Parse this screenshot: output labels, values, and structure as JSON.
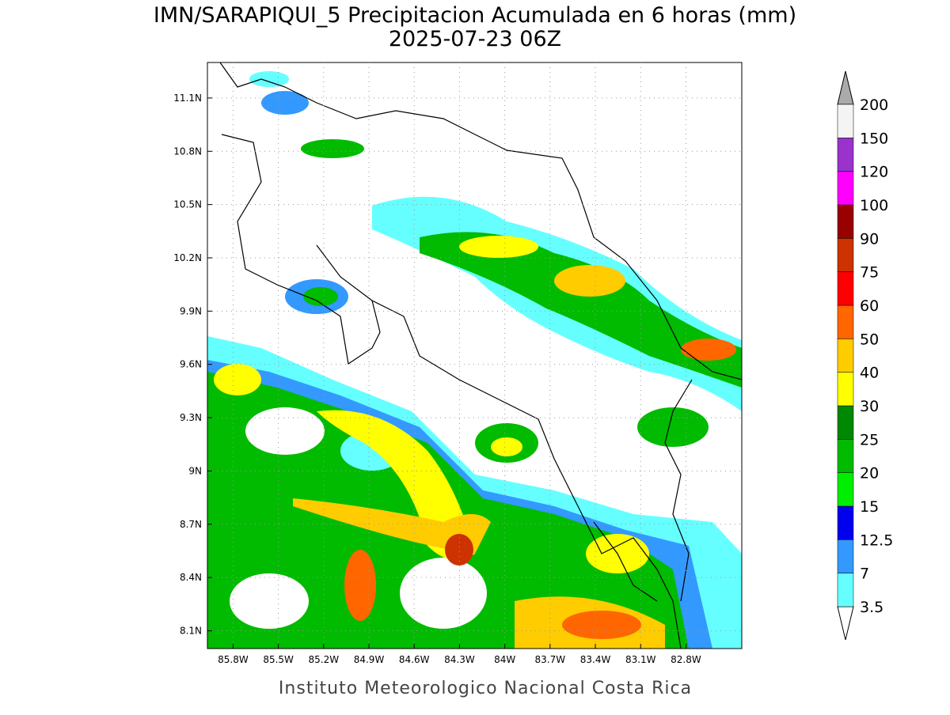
{
  "title": "IMN/SARAPIQUI_5 Precipitacion Acumulada en 6 horas (mm)",
  "subtitle": "2025-07-23 06Z",
  "map": {
    "lonlim": [
      -85.97,
      -82.43
    ],
    "latlim": [
      8.0,
      11.3
    ],
    "lon_ticks": [
      {
        "value": -85.8,
        "label": "85.8W"
      },
      {
        "value": -85.5,
        "label": "85.5W"
      },
      {
        "value": -85.2,
        "label": "85.2W"
      },
      {
        "value": -84.9,
        "label": "84.9W"
      },
      {
        "value": -84.6,
        "label": "84.6W"
      },
      {
        "value": -84.3,
        "label": "84.3W"
      },
      {
        "value": -84,
        "label": "84W"
      },
      {
        "value": -83.7,
        "label": "83.7W"
      },
      {
        "value": -83.4,
        "label": "83.4W"
      },
      {
        "value": -83.1,
        "label": "83.1W"
      },
      {
        "value": -82.8,
        "label": "82.8W"
      }
    ],
    "lat_ticks": [
      {
        "value": 11.1,
        "label": "11.1N"
      },
      {
        "value": 10.8,
        "label": "10.8N"
      },
      {
        "value": 10.5,
        "label": "10.5N"
      },
      {
        "value": 10.2,
        "label": "10.2N"
      },
      {
        "value": 9.9,
        "label": "9.9N"
      },
      {
        "value": 9.6,
        "label": "9.6N"
      },
      {
        "value": 9.3,
        "label": "9.3N"
      },
      {
        "value": 9,
        "label": "9N"
      },
      {
        "value": 8.7,
        "label": "8.7N"
      },
      {
        "value": 8.4,
        "label": "8.4N"
      },
      {
        "value": 8.1,
        "label": "8.1N"
      }
    ],
    "grid": true
  },
  "colorbar": {
    "levels": [
      3.5,
      7,
      12.5,
      15,
      20,
      25,
      30,
      40,
      50,
      60,
      75,
      90,
      100,
      120,
      150,
      200
    ],
    "colors": [
      "#66ffff",
      "#3399ff",
      "#0000ee",
      "#00ee00",
      "#00bb00",
      "#008800",
      "#ffff00",
      "#ffcc00",
      "#ff6600",
      "#ff0000",
      "#cc3300",
      "#990000",
      "#ff00ff",
      "#9933cc",
      "#f4f4f4"
    ],
    "under_color": "#ffffff",
    "over_color": "#aaaaaa"
  },
  "footer": "Instituto Meteorologico Nacional Costa Rica"
}
